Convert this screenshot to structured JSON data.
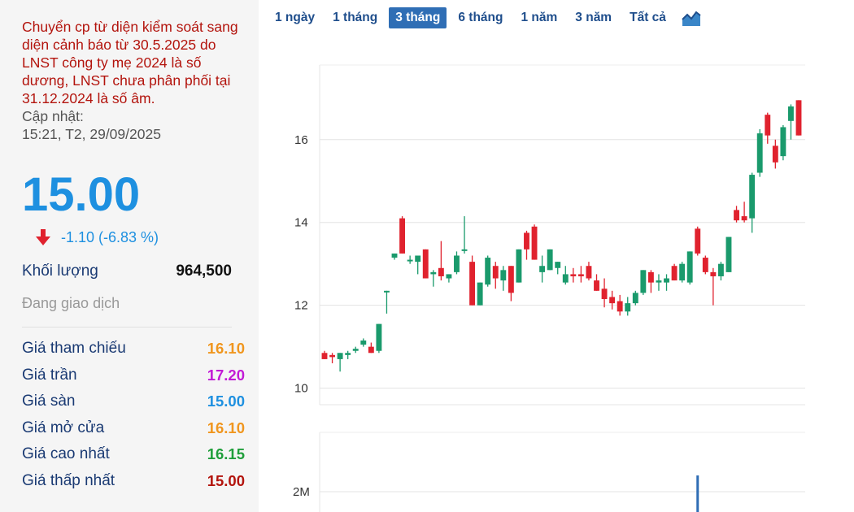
{
  "info": {
    "warning": "Chuyển cp từ diện kiểm soát sang diện cảnh báo từ 30.5.2025 do LNST công ty mẹ 2024 là số dương, LNST chưa phân phối tại 31.12.2024 là số âm.",
    "update_label": "Cập nhật:",
    "update_time": "15:21, T2, 29/09/2025",
    "price": "15.00",
    "change": "-1.10 (-6.83 %)",
    "volume_label": "Khối lượng",
    "volume_value": "964,500",
    "status": "Đang giao dịch",
    "stats": [
      {
        "label": "Giá tham chiếu",
        "value": "16.10",
        "color": "#f0961e"
      },
      {
        "label": "Giá trần",
        "value": "17.20",
        "color": "#c21bd6"
      },
      {
        "label": "Giá sàn",
        "value": "15.00",
        "color": "#1e90e0"
      },
      {
        "label": "Giá mở cửa",
        "value": "16.10",
        "color": "#f0961e"
      },
      {
        "label": "Giá cao nhất",
        "value": "16.15",
        "color": "#1f9e3a"
      },
      {
        "label": "Giá thấp nhất",
        "value": "15.00",
        "color": "#b3140d"
      }
    ],
    "colors": {
      "down": "#e0222e",
      "accent": "#1e90e0"
    }
  },
  "range_tabs": [
    {
      "label": "1 ngày",
      "active": false
    },
    {
      "label": "1 tháng",
      "active": false
    },
    {
      "label": "3 tháng",
      "active": true
    },
    {
      "label": "6 tháng",
      "active": false
    },
    {
      "label": "1 năm",
      "active": false
    },
    {
      "label": "3 năm",
      "active": false
    },
    {
      "label": "Tất cả",
      "active": false
    }
  ],
  "chart_type_icon": "area-chart-icon",
  "chart_data": {
    "type": "candlestick",
    "y_ticks": [
      "10",
      "12",
      "14",
      "16"
    ],
    "ylim": [
      9.6,
      17.8
    ],
    "volume_tick": "2M",
    "colors": {
      "up": "#1a9a6c",
      "down": "#e0222e"
    },
    "candles": [
      {
        "o": 10.85,
        "h": 10.9,
        "l": 10.7,
        "c": 10.7
      },
      {
        "o": 10.8,
        "h": 10.85,
        "l": 10.6,
        "c": 10.75
      },
      {
        "o": 10.7,
        "h": 10.85,
        "l": 10.4,
        "c": 10.85
      },
      {
        "o": 10.8,
        "h": 10.9,
        "l": 10.7,
        "c": 10.85
      },
      {
        "o": 10.9,
        "h": 11.0,
        "l": 10.85,
        "c": 10.95
      },
      {
        "o": 11.05,
        "h": 11.2,
        "l": 11.0,
        "c": 11.15
      },
      {
        "o": 11.0,
        "h": 11.1,
        "l": 10.85,
        "c": 10.85
      },
      {
        "o": 10.9,
        "h": 11.55,
        "l": 10.85,
        "c": 11.55
      },
      {
        "o": 12.35,
        "h": 12.35,
        "l": 11.8,
        "c": 12.35
      },
      {
        "o": 13.15,
        "h": 13.25,
        "l": 13.1,
        "c": 13.25
      },
      {
        "o": 14.1,
        "h": 14.15,
        "l": 13.25,
        "c": 13.25
      },
      {
        "o": 13.1,
        "h": 13.2,
        "l": 13.0,
        "c": 13.1
      },
      {
        "o": 13.05,
        "h": 13.2,
        "l": 12.75,
        "c": 13.2
      },
      {
        "o": 13.35,
        "h": 13.35,
        "l": 12.65,
        "c": 12.65
      },
      {
        "o": 12.75,
        "h": 12.85,
        "l": 12.45,
        "c": 12.8
      },
      {
        "o": 12.9,
        "h": 13.55,
        "l": 12.6,
        "c": 12.7
      },
      {
        "o": 12.65,
        "h": 12.75,
        "l": 12.55,
        "c": 12.75
      },
      {
        "o": 12.8,
        "h": 13.3,
        "l": 12.75,
        "c": 13.2
      },
      {
        "o": 13.35,
        "h": 14.15,
        "l": 13.25,
        "c": 13.35
      },
      {
        "o": 13.05,
        "h": 13.2,
        "l": 12.0,
        "c": 12.0
      },
      {
        "o": 12.0,
        "h": 12.55,
        "l": 12.0,
        "c": 12.55
      },
      {
        "o": 12.5,
        "h": 13.2,
        "l": 12.45,
        "c": 13.15
      },
      {
        "o": 12.95,
        "h": 13.05,
        "l": 12.4,
        "c": 12.65
      },
      {
        "o": 12.6,
        "h": 12.95,
        "l": 12.35,
        "c": 12.85
      },
      {
        "o": 12.95,
        "h": 12.95,
        "l": 12.1,
        "c": 12.3
      },
      {
        "o": 12.55,
        "h": 13.35,
        "l": 12.55,
        "c": 13.35
      },
      {
        "o": 13.75,
        "h": 13.8,
        "l": 13.1,
        "c": 13.35
      },
      {
        "o": 13.9,
        "h": 13.95,
        "l": 13.1,
        "c": 13.1
      },
      {
        "o": 12.8,
        "h": 13.2,
        "l": 12.55,
        "c": 12.95
      },
      {
        "o": 12.85,
        "h": 13.35,
        "l": 12.85,
        "c": 13.35
      },
      {
        "o": 12.9,
        "h": 13.05,
        "l": 12.75,
        "c": 13.05
      },
      {
        "o": 12.55,
        "h": 12.95,
        "l": 12.5,
        "c": 12.75
      },
      {
        "o": 12.75,
        "h": 12.9,
        "l": 12.55,
        "c": 12.7
      },
      {
        "o": 12.75,
        "h": 12.95,
        "l": 12.55,
        "c": 12.7
      },
      {
        "o": 12.95,
        "h": 13.05,
        "l": 12.6,
        "c": 12.65
      },
      {
        "o": 12.6,
        "h": 12.75,
        "l": 12.35,
        "c": 12.35
      },
      {
        "o": 12.4,
        "h": 12.65,
        "l": 11.95,
        "c": 12.15
      },
      {
        "o": 12.2,
        "h": 12.35,
        "l": 11.9,
        "c": 12.05
      },
      {
        "o": 12.1,
        "h": 12.25,
        "l": 11.75,
        "c": 11.85
      },
      {
        "o": 11.85,
        "h": 12.2,
        "l": 11.75,
        "c": 12.05
      },
      {
        "o": 12.05,
        "h": 12.35,
        "l": 12.0,
        "c": 12.3
      },
      {
        "o": 12.3,
        "h": 12.85,
        "l": 12.25,
        "c": 12.85
      },
      {
        "o": 12.8,
        "h": 12.85,
        "l": 12.3,
        "c": 12.55
      },
      {
        "o": 12.55,
        "h": 12.75,
        "l": 12.35,
        "c": 12.6
      },
      {
        "o": 12.55,
        "h": 12.75,
        "l": 12.35,
        "c": 12.65
      },
      {
        "o": 12.95,
        "h": 13.0,
        "l": 12.6,
        "c": 12.6
      },
      {
        "o": 12.6,
        "h": 13.05,
        "l": 12.55,
        "c": 13.0
      },
      {
        "o": 12.55,
        "h": 13.3,
        "l": 12.5,
        "c": 13.3
      },
      {
        "o": 13.85,
        "h": 13.9,
        "l": 13.2,
        "c": 13.25
      },
      {
        "o": 13.15,
        "h": 13.2,
        "l": 12.75,
        "c": 12.8
      },
      {
        "o": 12.8,
        "h": 12.9,
        "l": 12.0,
        "c": 12.7
      },
      {
        "o": 12.7,
        "h": 13.05,
        "l": 12.6,
        "c": 13.0
      },
      {
        "o": 12.8,
        "h": 13.65,
        "l": 12.8,
        "c": 13.65
      },
      {
        "o": 14.3,
        "h": 14.4,
        "l": 14.0,
        "c": 14.05
      },
      {
        "o": 14.15,
        "h": 14.5,
        "l": 14.0,
        "c": 14.05
      },
      {
        "o": 14.1,
        "h": 15.2,
        "l": 13.75,
        "c": 15.15
      },
      {
        "o": 15.2,
        "h": 16.25,
        "l": 15.1,
        "c": 16.15
      },
      {
        "o": 16.6,
        "h": 16.65,
        "l": 15.9,
        "c": 16.1
      },
      {
        "o": 15.85,
        "h": 16.0,
        "l": 15.3,
        "c": 15.45
      },
      {
        "o": 15.6,
        "h": 16.35,
        "l": 15.5,
        "c": 16.3
      },
      {
        "o": 16.45,
        "h": 16.85,
        "l": 16.0,
        "c": 16.8
      },
      {
        "o": 16.95,
        "h": 16.95,
        "l": 16.1,
        "c": 16.1
      }
    ],
    "volume_spike": {
      "index": 48,
      "value": 2.5
    }
  }
}
